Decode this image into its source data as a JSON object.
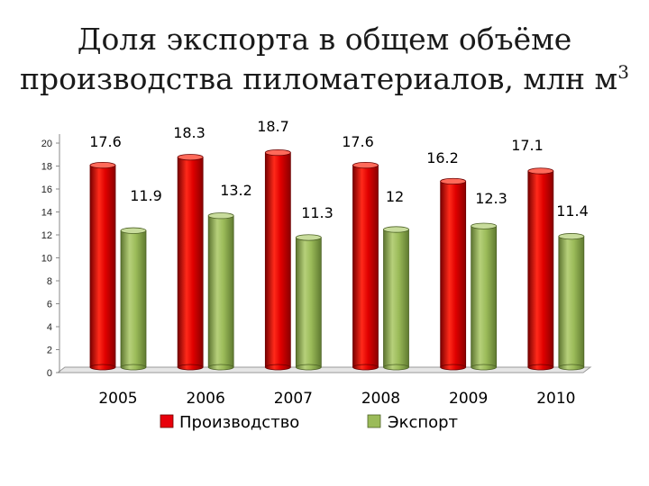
{
  "chart_data": {
    "type": "bar",
    "title": "Доля экспорта в общем объёме",
    "title_line2": "производства пиломатериалов, млн м",
    "title_sup": "3",
    "categories": [
      "2005",
      "2006",
      "2007",
      "2008",
      "2009",
      "2010"
    ],
    "series": [
      {
        "name": "Производство",
        "values": [
          17.6,
          18.3,
          18.7,
          17.6,
          16.2,
          17.1
        ],
        "labels": [
          "17.6",
          "18.3",
          "18.7",
          "17.6",
          "16.2",
          "17.1"
        ],
        "color": "#e8000b"
      },
      {
        "name": "Экспорт",
        "values": [
          11.9,
          13.2,
          11.3,
          12,
          12.3,
          11.4
        ],
        "labels": [
          "11.9",
          "13.2",
          "11.3",
          "12",
          "12.3",
          "11.4"
        ],
        "color": "#9bbb59"
      }
    ],
    "ylim": [
      0,
      20
    ],
    "yticks": [
      "0",
      "2",
      "4",
      "6",
      "8",
      "10",
      "12",
      "14",
      "16",
      "18",
      "20"
    ],
    "legend_position": "bottom",
    "grid": false
  }
}
